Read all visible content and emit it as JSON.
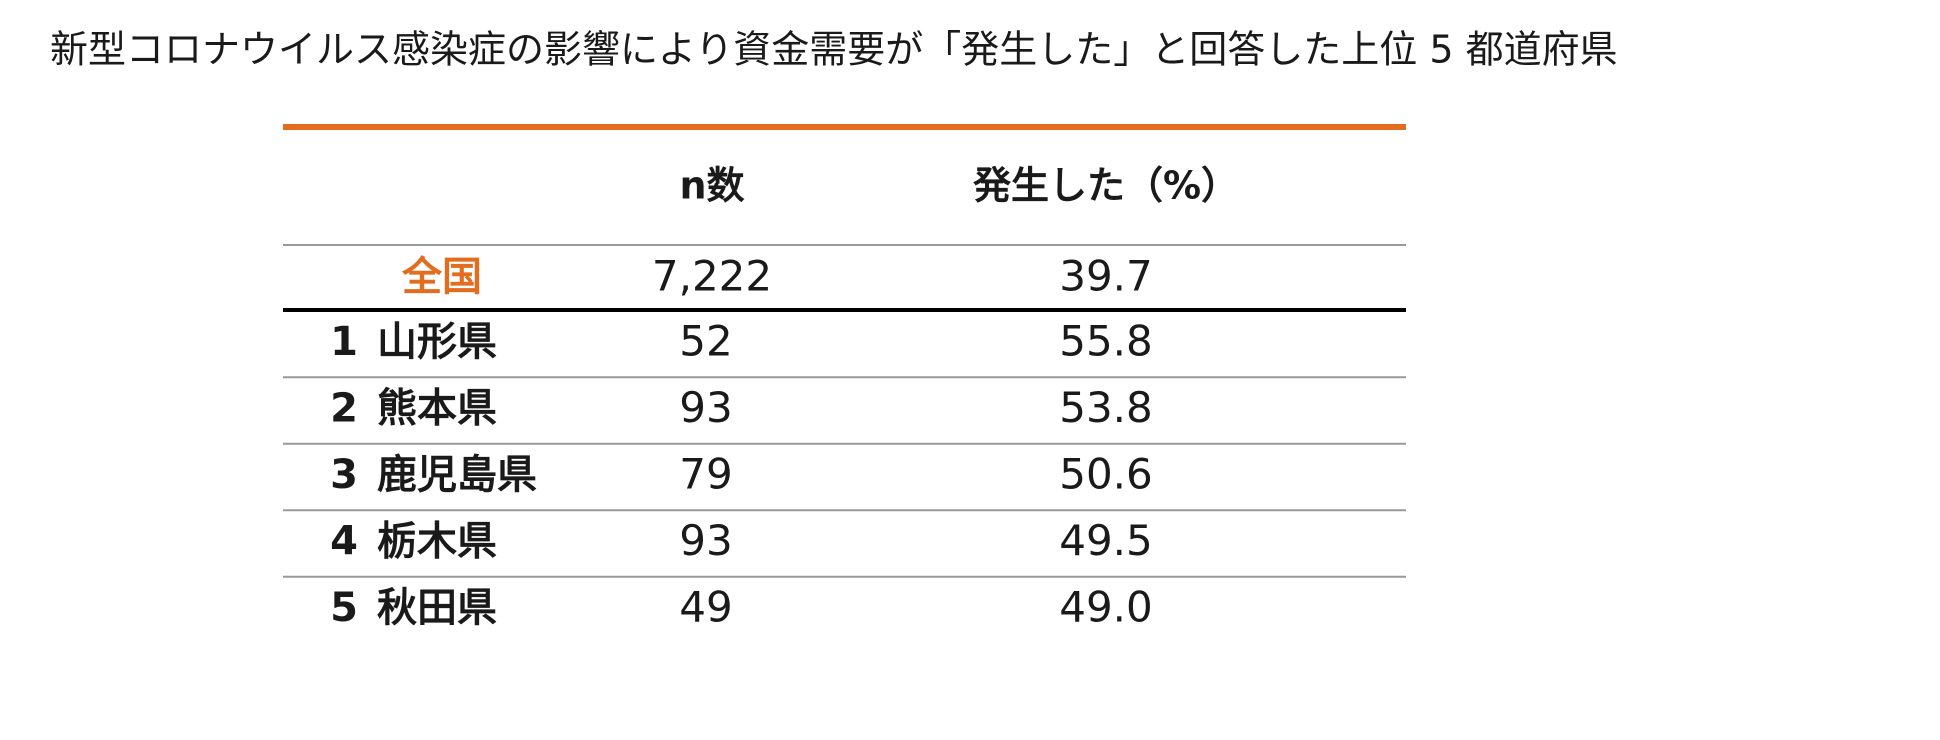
{
  "title": "新型コロナウイルス感染症の影響により資金需要が「発生した」と回答した上位 5 都道府県",
  "table": {
    "header": [
      "n数",
      "発生した（%）"
    ],
    "national": [
      "全国",
      "7,222",
      "39.7"
    ],
    "rows": [
      [
        "1",
        "山形県",
        "52",
        "55.8"
      ],
      [
        "2",
        "熊本県",
        "93",
        "53.8"
      ],
      [
        "3",
        "鹿児島県",
        "79",
        "50.6"
      ],
      [
        "4",
        "栃木県",
        "93",
        "49.5"
      ],
      [
        "5",
        "秋田県",
        "49",
        "49.0"
      ]
    ]
  }
}
